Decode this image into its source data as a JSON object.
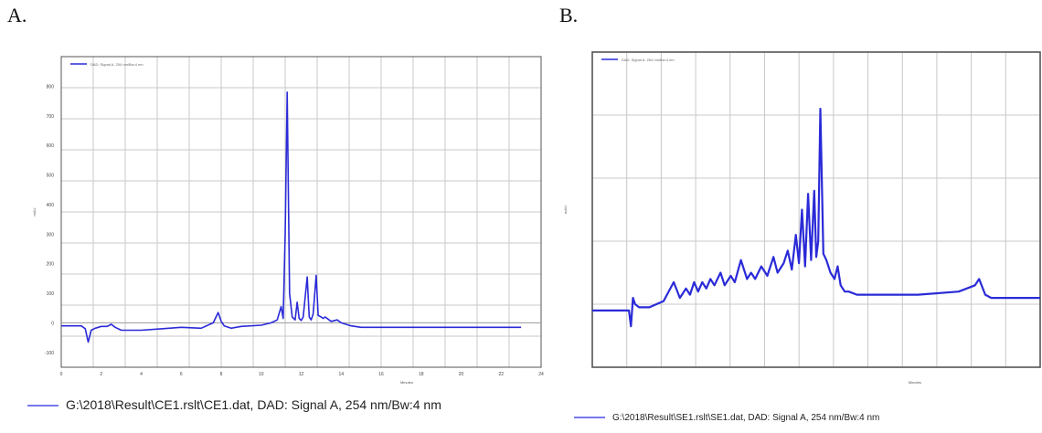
{
  "panels": {
    "a_label": "A.",
    "b_label": "B."
  },
  "captions": {
    "a": "G:\\2018\\Result\\CE1.rslt\\CE1.dat, DAD: Signal A, 254 nm/Bw:4 nm",
    "b": "G:\\2018\\Result\\SE1.rslt\\SE1.dat, DAD: Signal A, 254 nm/Bw:4 nm"
  },
  "colors": {
    "trace": "#2a2ad8",
    "grid": "#c8c8c8",
    "frame": "#555555",
    "caption_line": "#7777ee"
  },
  "chart_data": [
    {
      "type": "line",
      "panel": "A",
      "xlabel": "Minutes",
      "ylabel": "mAU",
      "xlim": [
        0,
        24
      ],
      "ylim": [
        -150,
        900
      ],
      "x_ticks": [
        0,
        2,
        4,
        6,
        8,
        10,
        12,
        14,
        16,
        18,
        20,
        22,
        24
      ],
      "y_ticks": [
        -100,
        0,
        100,
        200,
        300,
        400,
        500,
        600,
        700,
        800
      ],
      "grid": true,
      "legend_position": "top-left",
      "series": [
        {
          "name": "DAD: Signal A, 254 nm/Bw:4 nm",
          "x": [
            0,
            1.0,
            1.2,
            1.35,
            1.5,
            1.7,
            2.0,
            2.3,
            2.5,
            2.7,
            3.0,
            4.0,
            5.0,
            6.0,
            7.0,
            7.6,
            7.85,
            8.0,
            8.15,
            8.5,
            9.0,
            10.0,
            10.5,
            10.8,
            11.0,
            11.1,
            11.2,
            11.3,
            11.42,
            11.55,
            11.7,
            11.8,
            11.9,
            12.0,
            12.1,
            12.3,
            12.4,
            12.5,
            12.6,
            12.75,
            12.85,
            13.0,
            13.1,
            13.2,
            13.5,
            13.8,
            14.0,
            14.5,
            15.0,
            16.0,
            18.0,
            20.0,
            22.0,
            23.0
          ],
          "y": [
            -10,
            -10,
            -20,
            -65,
            -25,
            -18,
            -12,
            -12,
            -5,
            -15,
            -25,
            -25,
            -20,
            -15,
            -18,
            0,
            35,
            5,
            -10,
            -18,
            -12,
            -8,
            0,
            10,
            55,
            15,
            300,
            780,
            100,
            20,
            10,
            70,
            15,
            8,
            20,
            155,
            20,
            10,
            30,
            160,
            25,
            20,
            15,
            20,
            5,
            10,
            0,
            -10,
            -15,
            -15,
            -15,
            -15,
            -15,
            -15
          ]
        }
      ]
    },
    {
      "type": "line",
      "panel": "B",
      "xlabel": "Minutes",
      "ylabel": "mAU",
      "xlim": [
        0,
        22
      ],
      "ylim": [
        0,
        100
      ],
      "grid": true,
      "legend_position": "top-left",
      "series": [
        {
          "name": "DAD: Signal A, 254 nm/Bw:4 nm",
          "x": [
            0,
            1.8,
            1.9,
            2.0,
            2.1,
            2.3,
            2.8,
            3.5,
            4.0,
            4.3,
            4.6,
            4.8,
            5.0,
            5.2,
            5.4,
            5.6,
            5.8,
            6.0,
            6.3,
            6.5,
            6.8,
            7.0,
            7.3,
            7.6,
            7.8,
            8.0,
            8.3,
            8.6,
            8.9,
            9.1,
            9.4,
            9.6,
            9.8,
            10.0,
            10.15,
            10.3,
            10.45,
            10.6,
            10.75,
            10.9,
            11.0,
            11.1,
            11.2,
            11.35,
            11.5,
            11.7,
            11.9,
            12.05,
            12.2,
            12.4,
            12.6,
            13.0,
            14.0,
            16.0,
            18.0,
            18.8,
            19.0,
            19.3,
            19.6,
            22.0
          ],
          "y": [
            18,
            18,
            13,
            22,
            20,
            19,
            19,
            21,
            27,
            22,
            25,
            23,
            27,
            24,
            27,
            25,
            28,
            26,
            30,
            26,
            29,
            27,
            34,
            28,
            30,
            28,
            32,
            29,
            35,
            30,
            33,
            37,
            31,
            42,
            33,
            50,
            32,
            55,
            34,
            56,
            35,
            40,
            82,
            36,
            34,
            30,
            28,
            32,
            26,
            24,
            24,
            23,
            23,
            23,
            24,
            26,
            28,
            23,
            22,
            22
          ]
        }
      ]
    }
  ]
}
